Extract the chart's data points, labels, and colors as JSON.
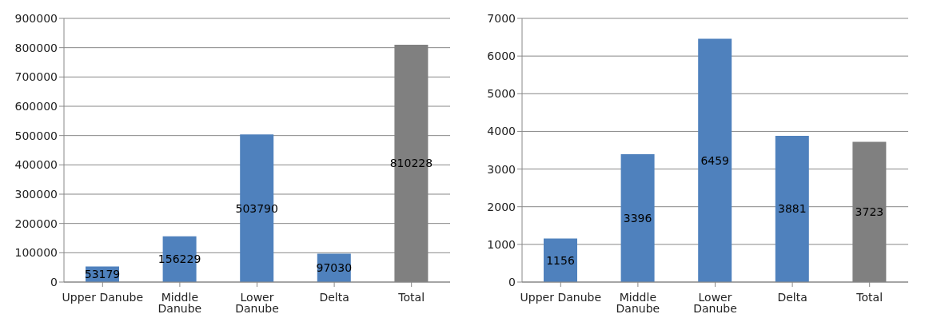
{
  "chart_data": [
    {
      "type": "bar",
      "categories": [
        "Upper Danube",
        "Middle Danube",
        "Lower Danube",
        "Delta",
        "Total"
      ],
      "values": [
        53179,
        156229,
        503790,
        97030,
        810228
      ],
      "colors": [
        "#4f81bd",
        "#4f81bd",
        "#4f81bd",
        "#4f81bd",
        "#808080"
      ],
      "ylim": [
        0,
        900000
      ],
      "yticks": [
        0,
        100000,
        200000,
        300000,
        400000,
        500000,
        600000,
        700000,
        800000,
        900000
      ],
      "grid": "y",
      "data_labels": true,
      "legend": false
    },
    {
      "type": "bar",
      "categories": [
        "Upper Danube",
        "Middle Danube",
        "Lower Danube",
        "Delta",
        "Total"
      ],
      "values": [
        1156,
        3396,
        6459,
        3881,
        3723
      ],
      "colors": [
        "#4f81bd",
        "#4f81bd",
        "#4f81bd",
        "#4f81bd",
        "#808080"
      ],
      "ylim": [
        0,
        7000
      ],
      "yticks": [
        0,
        1000,
        2000,
        3000,
        4000,
        5000,
        6000,
        7000
      ],
      "grid": "y",
      "data_labels": true,
      "legend": false
    }
  ]
}
